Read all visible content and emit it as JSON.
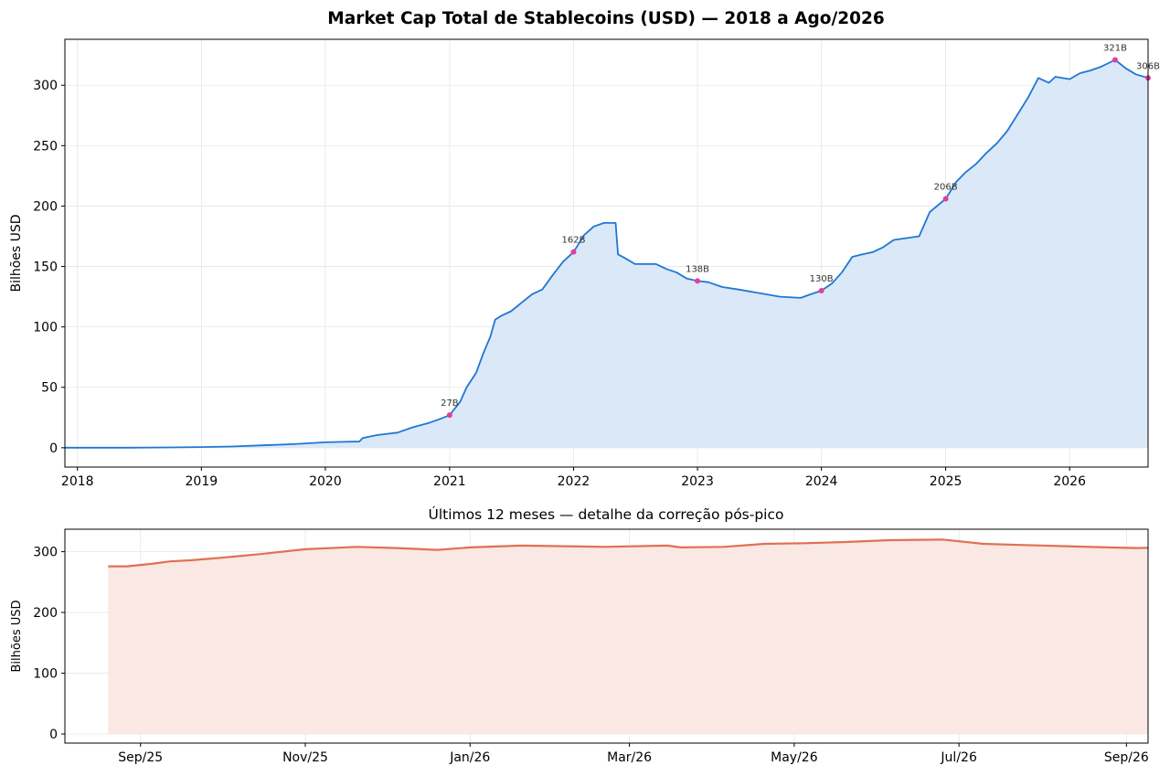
{
  "chart_data": [
    {
      "type": "area",
      "title": "Market Cap Total de Stablecoins (USD) — 2018 a Ago/2026",
      "xlabel": "",
      "ylabel": "Bilhões USD",
      "x_tick_labels": [
        "2018",
        "2019",
        "2020",
        "2021",
        "2022",
        "2023",
        "2024",
        "2025",
        "2026"
      ],
      "y_tick_labels": [
        "0",
        "50",
        "100",
        "150",
        "200",
        "250",
        "300"
      ],
      "xlim": [
        "2017-11-25",
        "2026-08-20"
      ],
      "ylim": [
        -16,
        338
      ],
      "grid": true,
      "line_color": "#1f77d4",
      "fill_color": "#dbe8f8",
      "marker_color": "#e0409a",
      "series": [
        {
          "points": [
            [
              "2017-11-25",
              0
            ],
            [
              "2018-06-01",
              0
            ],
            [
              "2018-10-01",
              0.3
            ],
            [
              "2019-01-01",
              0.6
            ],
            [
              "2019-04-01",
              1
            ],
            [
              "2019-07-01",
              2
            ],
            [
              "2019-10-01",
              3
            ],
            [
              "2020-01-01",
              4.5
            ],
            [
              "2020-03-20",
              5
            ],
            [
              "2020-04-10",
              5.1
            ],
            [
              "2020-04-20",
              8
            ],
            [
              "2020-06-01",
              10.5
            ],
            [
              "2020-08-01",
              12.5
            ],
            [
              "2020-09-15",
              17
            ],
            [
              "2020-11-01",
              20.5
            ],
            [
              "2020-12-01",
              23.5
            ],
            [
              "2021-01-01",
              27
            ],
            [
              "2021-02-01",
              38
            ],
            [
              "2021-02-20",
              50
            ],
            [
              "2021-03-20",
              62
            ],
            [
              "2021-04-10",
              78
            ],
            [
              "2021-05-01",
              92
            ],
            [
              "2021-05-15",
              106
            ],
            [
              "2021-06-01",
              109
            ],
            [
              "2021-07-01",
              113
            ],
            [
              "2021-08-01",
              120
            ],
            [
              "2021-09-01",
              127
            ],
            [
              "2021-10-01",
              131
            ],
            [
              "2021-11-01",
              143
            ],
            [
              "2021-12-01",
              154
            ],
            [
              "2022-01-01",
              162
            ],
            [
              "2022-02-01",
              176
            ],
            [
              "2022-03-01",
              183
            ],
            [
              "2022-04-01",
              186
            ],
            [
              "2022-05-05",
              186
            ],
            [
              "2022-05-12",
              160
            ],
            [
              "2022-06-01",
              157
            ],
            [
              "2022-07-01",
              152
            ],
            [
              "2022-09-01",
              152
            ],
            [
              "2022-10-01",
              148
            ],
            [
              "2022-11-01",
              145
            ],
            [
              "2022-12-01",
              140
            ],
            [
              "2023-01-01",
              138
            ],
            [
              "2023-02-01",
              137
            ],
            [
              "2023-03-15",
              133
            ],
            [
              "2023-05-01",
              131
            ],
            [
              "2023-07-01",
              128
            ],
            [
              "2023-09-01",
              125
            ],
            [
              "2023-11-01",
              124
            ],
            [
              "2023-12-01",
              127
            ],
            [
              "2024-01-01",
              130
            ],
            [
              "2024-02-01",
              136
            ],
            [
              "2024-03-01",
              145
            ],
            [
              "2024-04-01",
              158
            ],
            [
              "2024-05-01",
              160
            ],
            [
              "2024-06-01",
              162
            ],
            [
              "2024-07-01",
              166
            ],
            [
              "2024-08-01",
              172
            ],
            [
              "2024-10-15",
              175
            ],
            [
              "2024-11-15",
              195
            ],
            [
              "2025-01-01",
              206
            ],
            [
              "2025-02-01",
              220
            ],
            [
              "2025-03-01",
              228
            ],
            [
              "2025-04-01",
              235
            ],
            [
              "2025-05-01",
              244
            ],
            [
              "2025-06-01",
              252
            ],
            [
              "2025-07-01",
              262
            ],
            [
              "2025-08-01",
              276
            ],
            [
              "2025-09-01",
              290
            ],
            [
              "2025-10-01",
              306
            ],
            [
              "2025-11-01",
              302
            ],
            [
              "2025-11-20",
              307
            ],
            [
              "2026-01-01",
              305
            ],
            [
              "2026-02-01",
              310
            ],
            [
              "2026-03-01",
              312
            ],
            [
              "2026-04-01",
              315
            ],
            [
              "2026-05-15",
              321
            ],
            [
              "2026-06-15",
              314
            ],
            [
              "2026-07-15",
              309
            ],
            [
              "2026-08-20",
              306
            ]
          ]
        }
      ],
      "annotations": [
        {
          "x": "2021-01-01",
          "y": 27,
          "label": "27B"
        },
        {
          "x": "2022-01-01",
          "y": 162,
          "label": "162B"
        },
        {
          "x": "2023-01-01",
          "y": 138,
          "label": "138B"
        },
        {
          "x": "2024-01-01",
          "y": 130,
          "label": "130B"
        },
        {
          "x": "2025-01-01",
          "y": 206,
          "label": "206B"
        },
        {
          "x": "2026-05-15",
          "y": 321,
          "label": "321B"
        },
        {
          "x": "2026-08-20",
          "y": 306,
          "label": "306B"
        }
      ]
    },
    {
      "type": "area",
      "title": "Últimos 12 meses — detalhe da correção pós-pico",
      "xlabel": "",
      "ylabel": "Bilhões USD",
      "x_tick_labels": [
        "Sep/25",
        "Nov/25",
        "Jan/26",
        "Mar/26",
        "May/26",
        "Jul/26",
        "Sep/26"
      ],
      "y_tick_labels": [
        "0",
        "100",
        "200",
        "300"
      ],
      "xlim": [
        "2025-08-04",
        "2026-09-09"
      ],
      "ylim": [
        -15,
        337
      ],
      "grid": true,
      "line_color": "#e07055",
      "fill_color": "#f9e8e3",
      "series": [
        {
          "points": [
            [
              "2025-08-20",
              276
            ],
            [
              "2025-08-27",
              276
            ],
            [
              "2025-09-05",
              280
            ],
            [
              "2025-09-12",
              284
            ],
            [
              "2025-09-20",
              286
            ],
            [
              "2025-10-01",
              290
            ],
            [
              "2025-10-15",
              296
            ],
            [
              "2025-11-01",
              304
            ],
            [
              "2025-11-20",
              308
            ],
            [
              "2025-12-05",
              306
            ],
            [
              "2025-12-20",
              303
            ],
            [
              "2026-01-01",
              307
            ],
            [
              "2026-01-20",
              310
            ],
            [
              "2026-02-05",
              309
            ],
            [
              "2026-02-20",
              308
            ],
            [
              "2026-03-15",
              310
            ],
            [
              "2026-03-20",
              307
            ],
            [
              "2026-04-05",
              308
            ],
            [
              "2026-04-20",
              313
            ],
            [
              "2026-05-05",
              314
            ],
            [
              "2026-05-20",
              316
            ],
            [
              "2026-06-05",
              319
            ],
            [
              "2026-06-25",
              320
            ],
            [
              "2026-07-10",
              313
            ],
            [
              "2026-07-25",
              311
            ],
            [
              "2026-08-10",
              309
            ],
            [
              "2026-08-25",
              307
            ],
            [
              "2026-09-05",
              306
            ],
            [
              "2026-09-15",
              307
            ],
            [
              "2026-10-01",
              308
            ]
          ]
        }
      ]
    }
  ]
}
